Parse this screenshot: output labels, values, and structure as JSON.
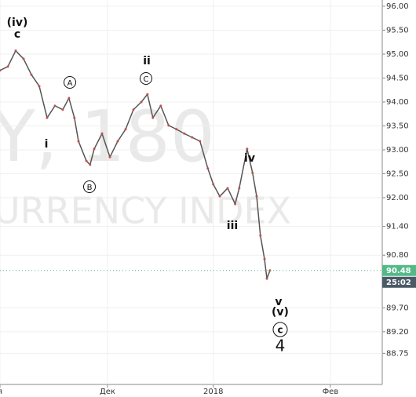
{
  "chart_data": {
    "type": "line",
    "watermark": [
      "Y, 180",
      "URRENCY INDEX"
    ],
    "x": [
      0,
      2.3,
      4.6,
      6.9,
      9.2,
      11.5,
      13.8,
      16.1,
      18.4,
      20.2,
      21.8,
      23,
      25.3,
      26.4,
      27.6,
      29.9,
      32.2,
      34.5,
      36.8,
      39.1,
      41.4,
      43.2,
      44.8,
      47.1,
      49.4,
      51.7,
      54,
      56.3,
      58.6,
      60.9,
      62.5,
      64.4,
      66.7,
      68.9,
      70.1,
      72.4,
      74,
      75.2,
      76.3,
      77.5,
      78.2,
      79.1
    ],
    "values": [
      94.66,
      94.74,
      95.07,
      94.9,
      94.57,
      94.33,
      93.67,
      93.92,
      93.84,
      94.08,
      93.67,
      93.18,
      92.77,
      92.69,
      93.02,
      93.34,
      92.85,
      93.18,
      93.43,
      93.84,
      94.0,
      94.16,
      93.67,
      93.92,
      93.51,
      93.43,
      93.34,
      93.26,
      93.18,
      92.61,
      92.28,
      92.03,
      92.2,
      91.87,
      92.2,
      93.02,
      92.52,
      92.03,
      91.21,
      90.72,
      90.31,
      90.48
    ],
    "color": "#555555",
    "xlim": [
      0,
      112
    ],
    "xticks": [
      {
        "value": 0,
        "label": "я"
      },
      {
        "value": 31.5,
        "label": "Дек"
      },
      {
        "value": 62.5,
        "label": "2018"
      },
      {
        "value": 96.8,
        "label": "Фев"
      }
    ],
    "ylim": [
      88.1,
      96.13
    ],
    "yticks": [
      {
        "value": 96,
        "label": "96.00"
      },
      {
        "value": 95.5,
        "label": "95.50"
      },
      {
        "value": 95,
        "label": "95.00"
      },
      {
        "value": 94.5,
        "label": "94.50"
      },
      {
        "value": 94,
        "label": "94.00"
      },
      {
        "value": 93.5,
        "label": "93.50"
      },
      {
        "value": 93,
        "label": "93.00"
      },
      {
        "value": 92.5,
        "label": "92.50"
      },
      {
        "value": 92,
        "label": "92.00"
      },
      {
        "value": 91.4,
        "label": "91.40"
      },
      {
        "value": 90.8,
        "label": "90.80"
      },
      {
        "value": 89.7,
        "label": "89.70"
      },
      {
        "value": 89.2,
        "label": "89.20"
      },
      {
        "value": 88.75,
        "label": "88.75"
      }
    ],
    "grid": true,
    "last_price": {
      "value": 90.48,
      "label": "90.48",
      "color": "#53b987"
    },
    "countdown": "25:02",
    "annotations": [
      "(iv)",
      "c",
      "A",
      "i",
      "B",
      "ii",
      "C",
      "iv",
      "iii",
      "v",
      "(v)",
      "c",
      "4"
    ]
  }
}
